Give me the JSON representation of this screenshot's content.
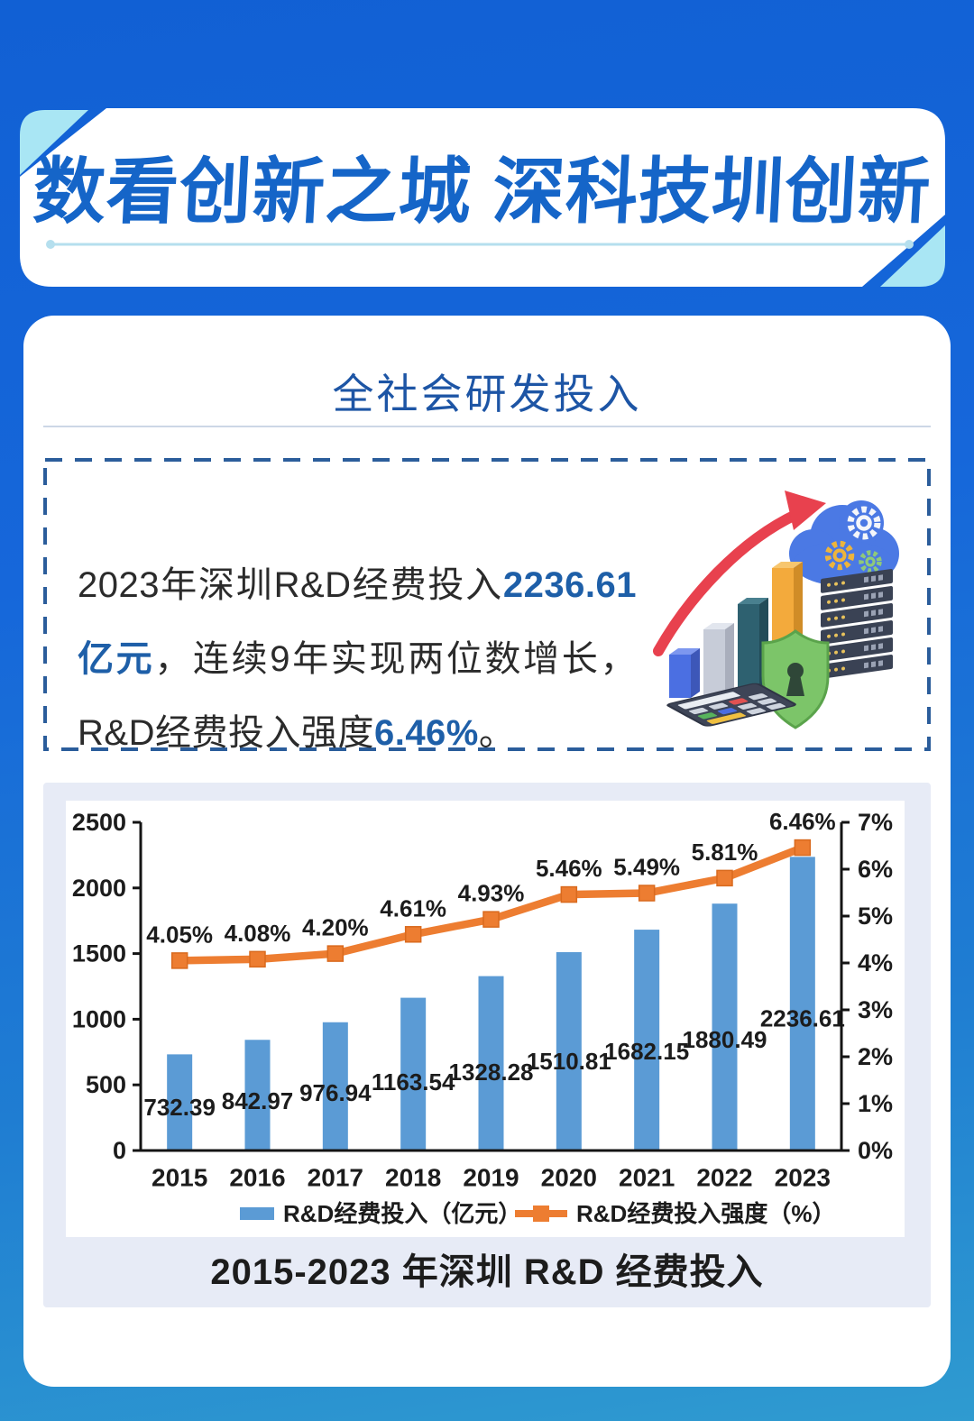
{
  "banner": {
    "title": "数看创新之城 深科技圳创新",
    "accent_color": "#a9e6f4",
    "title_color": "#1565c8"
  },
  "card": {
    "section_title": "全社会研发投入",
    "highlight_box": {
      "segments": [
        {
          "text": "2023年深圳R&D经费投入",
          "highlight": false
        },
        {
          "text": "2236.61亿元",
          "highlight": true
        },
        {
          "text": "，连续9年实现两位数增长，R&D经费投入强度",
          "highlight": false
        },
        {
          "text": "6.46%",
          "highlight": true
        },
        {
          "text": "。",
          "highlight": false
        }
      ],
      "highlight_color": "#1e5fa8",
      "illustration_icons": [
        "growth-arrow",
        "mini-bar-chart",
        "cloud-gears",
        "server-stack",
        "security-shield",
        "calculator"
      ]
    },
    "chart_caption": "2015-2023 年深圳 R&D 经费投入"
  },
  "chart_data": {
    "type": "bar",
    "combo": "bar+line",
    "title": "2015-2023 年深圳 R&D 经费投入",
    "categories": [
      "2015",
      "2016",
      "2017",
      "2018",
      "2019",
      "2020",
      "2021",
      "2022",
      "2023"
    ],
    "series": [
      {
        "name": "R&D经费投入（亿元）",
        "type": "bar",
        "axis": "left",
        "color": "#5b9bd5",
        "values": [
          732.39,
          842.97,
          976.94,
          1163.54,
          1328.28,
          1510.81,
          1682.15,
          1880.49,
          2236.61
        ],
        "labels": [
          "732.39",
          "842.97",
          "976.94",
          "1163.54",
          "1328.28",
          "1510.81",
          "1682.15",
          "1880.49",
          "2236.61"
        ]
      },
      {
        "name": "R&D经费投入强度（%）",
        "type": "line",
        "axis": "right",
        "color": "#ed7d31",
        "marker": "square",
        "values": [
          4.05,
          4.08,
          4.2,
          4.61,
          4.93,
          5.46,
          5.49,
          5.81,
          6.46
        ],
        "labels": [
          "4.05%",
          "4.08%",
          "4.20%",
          "4.61%",
          "4.93%",
          "5.46%",
          "5.49%",
          "5.81%",
          "6.46%"
        ]
      }
    ],
    "left_axis": {
      "min": 0,
      "max": 2500,
      "step": 500,
      "labels": [
        "2500",
        "2000",
        "1500",
        "1000",
        "500",
        "0"
      ]
    },
    "right_axis": {
      "min": 0,
      "max": 7,
      "step": 1,
      "labels": [
        "7%",
        "6%",
        "5%",
        "4%",
        "3%",
        "2%",
        "1%",
        "0%"
      ]
    },
    "grid": false,
    "legend_position": "bottom",
    "axis_color": "#141414",
    "plot_background": "#ffffff"
  }
}
